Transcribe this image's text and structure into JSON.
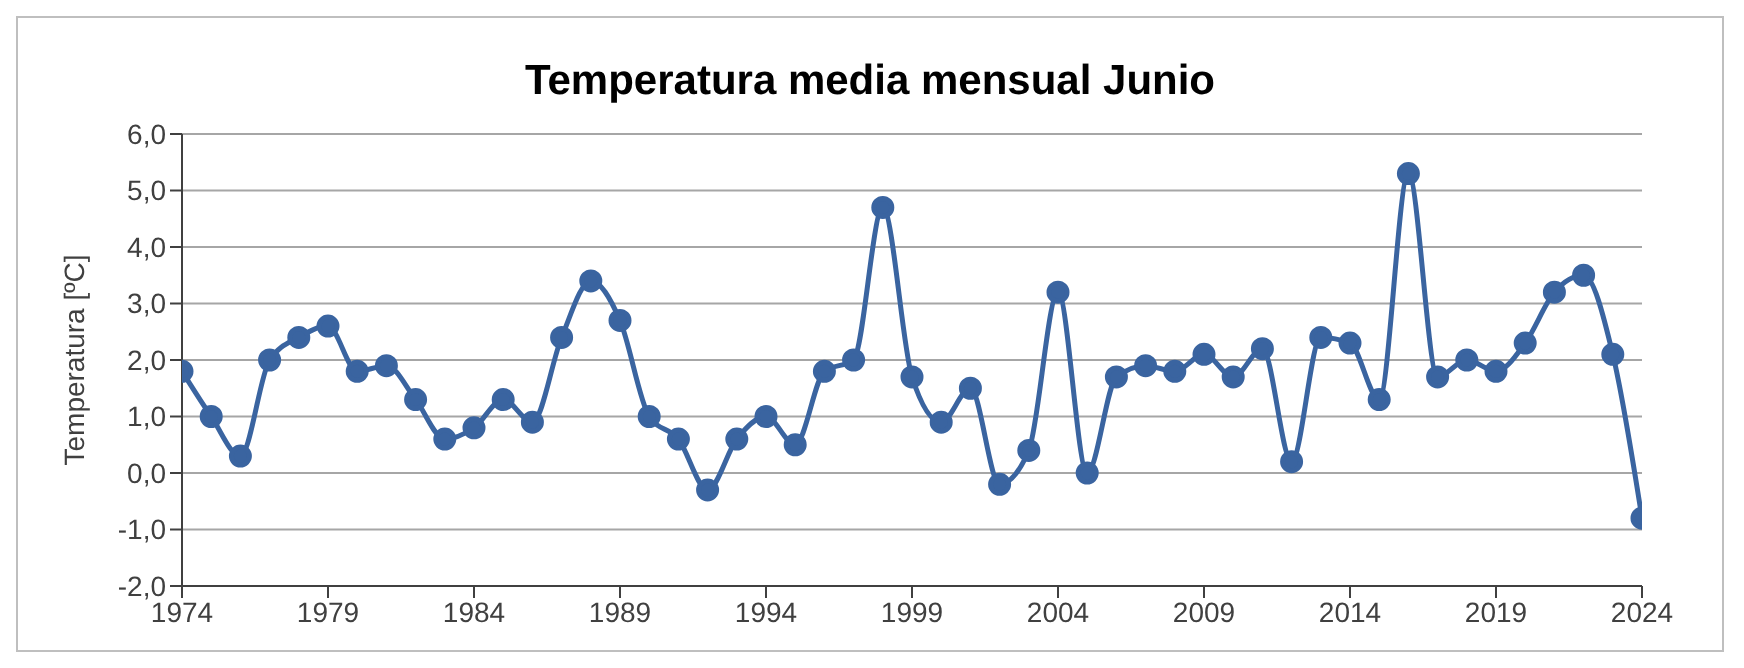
{
  "chart_data": {
    "type": "line",
    "title": "Temperatura media mensual Junio",
    "ylabel": "Temperatura [ºC]",
    "x": [
      1974,
      1975,
      1976,
      1977,
      1978,
      1979,
      1980,
      1981,
      1982,
      1983,
      1984,
      1985,
      1986,
      1987,
      1988,
      1989,
      1990,
      1991,
      1992,
      1993,
      1994,
      1995,
      1996,
      1997,
      1998,
      1999,
      2000,
      2001,
      2002,
      2003,
      2004,
      2005,
      2006,
      2007,
      2008,
      2009,
      2010,
      2011,
      2012,
      2013,
      2014,
      2015,
      2016,
      2017,
      2018,
      2019,
      2020,
      2021,
      2022,
      2023,
      2024
    ],
    "series": [
      {
        "color": "#3a64a0",
        "values": [
          1.8,
          1.0,
          0.3,
          2.0,
          2.4,
          2.6,
          1.8,
          1.9,
          1.3,
          0.6,
          0.8,
          1.3,
          0.9,
          2.4,
          3.4,
          2.7,
          1.0,
          0.6,
          -0.3,
          0.6,
          1.0,
          0.5,
          1.8,
          2.0,
          4.7,
          1.7,
          0.9,
          1.5,
          -0.2,
          0.4,
          3.2,
          0.0,
          1.7,
          1.9,
          1.8,
          2.1,
          1.7,
          2.2,
          0.2,
          2.4,
          2.3,
          1.3,
          5.3,
          1.7,
          2.0,
          1.8,
          2.3,
          3.2,
          3.5,
          2.1,
          -0.8
        ]
      }
    ],
    "xlim": [
      1974,
      2024
    ],
    "xticks": [
      1974,
      1979,
      1984,
      1989,
      1994,
      1999,
      2004,
      2009,
      2014,
      2019,
      2024
    ],
    "ylim": [
      -2,
      6
    ],
    "yticks": [
      {
        "value": -2,
        "label": "-2,0"
      },
      {
        "value": -1,
        "label": "-1,0"
      },
      {
        "value": 0,
        "label": "0,0"
      },
      {
        "value": 1,
        "label": "1,0"
      },
      {
        "value": 2,
        "label": "2,0"
      },
      {
        "value": 3,
        "label": "3,0"
      },
      {
        "value": 4,
        "label": "4,0"
      },
      {
        "value": 5,
        "label": "5,0"
      },
      {
        "value": 6,
        "label": "6,0"
      }
    ],
    "grid": "y",
    "legend": false,
    "marker": "circle",
    "line_style": "solid"
  }
}
